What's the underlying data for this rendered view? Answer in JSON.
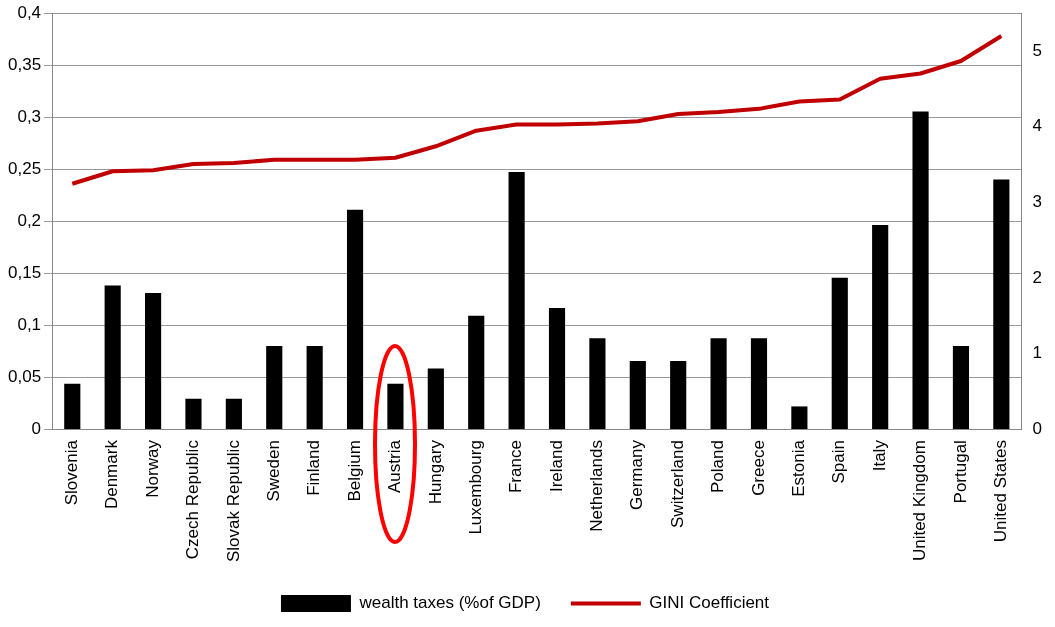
{
  "chart_data": {
    "type": "bar",
    "categories": [
      "Slovenia",
      "Denmark",
      "Norway",
      "Czech Republic",
      "Slovak Republic",
      "Sweden",
      "Finland",
      "Belgium",
      "Austria",
      "Hungary",
      "Luxembourg",
      "France",
      "Ireland",
      "Netherlands",
      "Germany",
      "Switzerland",
      "Poland",
      "Greece",
      "Estonia",
      "Spain",
      "Italy",
      "United Kingdom",
      "Portugal",
      "United States"
    ],
    "series": [
      {
        "name": "wealth taxes (%of GDP)",
        "axis": "y2",
        "color": "#000000",
        "values": [
          0.6,
          1.9,
          1.8,
          0.4,
          0.4,
          1.1,
          1.1,
          2.9,
          0.6,
          0.8,
          1.5,
          3.4,
          1.6,
          1.2,
          0.9,
          0.9,
          1.2,
          1.2,
          0.3,
          2.0,
          2.7,
          4.2,
          1.1,
          3.3
        ]
      },
      {
        "name": "GINI Coefficient",
        "type": "line",
        "color": "#c00000",
        "values": [
          0.236,
          0.248,
          0.249,
          0.255,
          0.256,
          0.259,
          0.259,
          0.259,
          0.261,
          0.272,
          0.287,
          0.293,
          0.293,
          0.294,
          0.296,
          0.303,
          0.305,
          0.308,
          0.315,
          0.317,
          0.337,
          0.342,
          0.354,
          0.378
        ]
      }
    ],
    "ylim": [
      0,
      0.4
    ],
    "yticks": [
      0,
      {
        "value": 0.05,
        "label": "0,05"
      },
      {
        "value": 0.1,
        "label": "0,1"
      },
      {
        "value": 0.15,
        "label": "0,15"
      },
      {
        "value": 0.2,
        "label": "0,2"
      },
      {
        "value": 0.25,
        "label": "0,25"
      },
      {
        "value": 0.3,
        "label": "0,3"
      },
      {
        "value": 0.35,
        "label": "0,35"
      },
      {
        "value": 0.4,
        "label": "0,4"
      }
    ],
    "y2lim": [
      0,
      5.5
    ],
    "y2ticks": [
      0,
      1,
      2,
      3,
      4,
      5
    ],
    "grid": "y",
    "legend": "bottom",
    "marker": "none",
    "line_style": "solid"
  }
}
